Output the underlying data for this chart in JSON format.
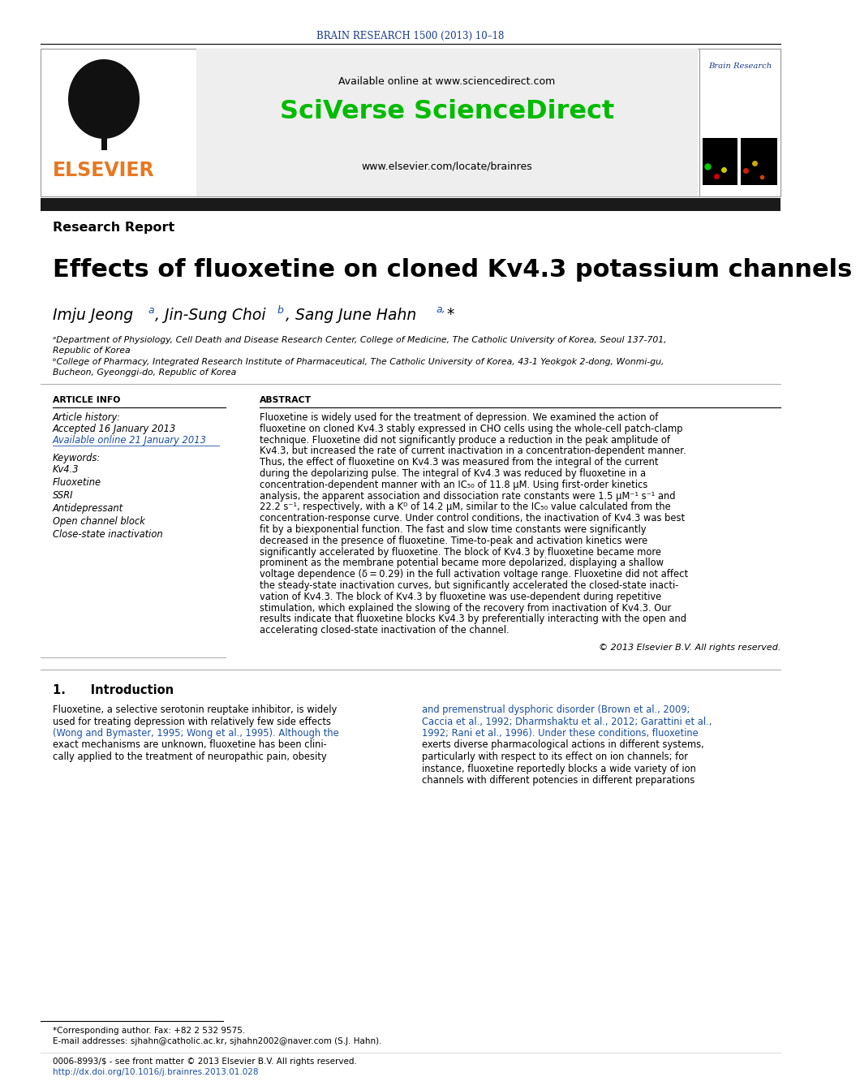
{
  "journal_header": "BRAIN RESEARCH 1500 (2013) 10–18",
  "journal_header_color": "#1a3a8c",
  "available_online": "Available online at www.sciencedirect.com",
  "sciverse_text": "SciVerse ScienceDirect",
  "sciverse_color": "#00bb00",
  "elsevier_url": "www.elsevier.com/locate/brainres",
  "article_type": "Research Report",
  "title": "Effects of fluoxetine on cloned Kv4.3 potassium channels",
  "affil_a_line1": "ᵃDepartment of Physiology, Cell Death and Disease Research Center, College of Medicine, The Catholic University of Korea, Seoul 137-701,",
  "affil_a_line2": "Republic of Korea",
  "affil_b_line1": "ᵇCollege of Pharmacy, Integrated Research Institute of Pharmaceutical, The Catholic University of Korea, 43-1 Yeokgok 2-dong, Wonmi-gu,",
  "affil_b_line2": "Bucheon, Gyeonggi-do, Republic of Korea",
  "article_info_header": "ARTICLE INFO",
  "abstract_header": "ABSTRACT",
  "article_history_label": "Article history:",
  "accepted_date": "Accepted 16 January 2013",
  "available_date": "Available online 21 January 2013",
  "keywords_label": "Keywords:",
  "keywords": [
    "Kv4.3",
    "Fluoxetine",
    "SSRI",
    "Antidepressant",
    "Open channel block",
    "Close-state inactivation"
  ],
  "abstract_lines": [
    "Fluoxetine is widely used for the treatment of depression. We examined the action of",
    "fluoxetine on cloned Kv4.3 stably expressed in CHO cells using the whole-cell patch-clamp",
    "technique. Fluoxetine did not significantly produce a reduction in the peak amplitude of",
    "Kv4.3, but increased the rate of current inactivation in a concentration-dependent manner.",
    "Thus, the effect of fluoxetine on Kv4.3 was measured from the integral of the current",
    "during the depolarizing pulse. The integral of Kv4.3 was reduced by fluoxetine in a",
    "concentration-dependent manner with an IC₅₀ of 11.8 μM. Using first-order kinetics",
    "analysis, the apparent association and dissociation rate constants were 1.5 μM⁻¹ s⁻¹ and",
    "22.2 s⁻¹, respectively, with a Kᴰ of 14.2 μM, similar to the IC₅₀ value calculated from the",
    "concentration-response curve. Under control conditions, the inactivation of Kv4.3 was best",
    "fit by a biexponential function. The fast and slow time constants were significantly",
    "decreased in the presence of fluoxetine. Time-to-peak and activation kinetics were",
    "significantly accelerated by fluoxetine. The block of Kv4.3 by fluoxetine became more",
    "prominent as the membrane potential became more depolarized, displaying a shallow",
    "voltage dependence (δ = 0.29) in the full activation voltage range. Fluoxetine did not affect",
    "the steady-state inactivation curves, but significantly accelerated the closed-state inacti-",
    "vation of Kv4.3. The block of Kv4.3 by fluoxetine was use-dependent during repetitive",
    "stimulation, which explained the slowing of the recovery from inactivation of Kv4.3. Our",
    "results indicate that fluoxetine blocks Kv4.3 by preferentially interacting with the open and",
    "accelerating closed-state inactivation of the channel."
  ],
  "copyright": "© 2013 Elsevier B.V. All rights reserved.",
  "intro_header": "1.      Introduction",
  "intro_col1_lines": [
    "Fluoxetine, a selective serotonin reuptake inhibitor, is widely",
    "used for treating depression with relatively few side effects",
    "(Wong and Bymaster, 1995; Wong et al., 1995). Although the",
    "exact mechanisms are unknown, fluoxetine has been clini-",
    "cally applied to the treatment of neuropathic pain, obesity"
  ],
  "intro_col1_link_lines": [
    2
  ],
  "intro_col2_lines": [
    "and premenstrual dysphoric disorder (Brown et al., 2009;",
    "Caccia et al., 1992; Dharmshaktu et al., 2012; Garattini et al.,",
    "1992; Rani et al., 1996). Under these conditions, fluoxetine",
    "exerts diverse pharmacological actions in different systems,",
    "particularly with respect to its effect on ion channels; for",
    "instance, fluoxetine reportedly blocks a wide variety of ion",
    "channels with different potencies in different preparations"
  ],
  "intro_col2_link_lines": [
    0,
    1,
    2
  ],
  "footnote_star": "*Corresponding author. Fax: +82 2 532 9575.",
  "footnote_email": "E-mail addresses: sjhahn@catholic.ac.kr, sjhahn2002@naver.com (S.J. Hahn).",
  "footnote_bottom1": "0006-8993/$ - see front matter © 2013 Elsevier B.V. All rights reserved.",
  "footnote_bottom2": "http://dx.doi.org/10.1016/j.brainres.2013.01.028",
  "elsevier_color": "#e87722",
  "link_color": "#1a4fa0",
  "brain_research_color": "#1a3a8c",
  "header_bar_color": "#1a1a1a",
  "box_bg": "#eeeeee"
}
